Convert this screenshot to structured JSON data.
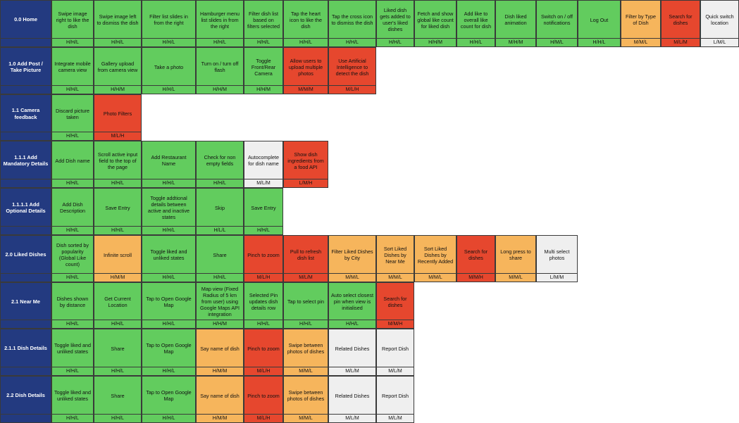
{
  "palette": {
    "green": "#62cc5e",
    "orange": "#f6b55c",
    "red": "#e6472e",
    "grey": "#efefef"
  },
  "rows": [
    {
      "label": "0.0 Home",
      "cells": [
        {
          "text": "Swipe image right to like the dish",
          "priority": "H/H/L",
          "color": "green"
        },
        {
          "text": "Swipe image left to dismiss the dish",
          "priority": "H/H/L",
          "color": "green"
        },
        {
          "text": "Filter list slides in from the right",
          "priority": "H/H/L",
          "color": "green"
        },
        {
          "text": "Hamburger menu list slides in from the right",
          "priority": "H/H/L",
          "color": "green"
        },
        {
          "text": "Filter dish list based on filters selected",
          "priority": "H/H/L",
          "color": "green"
        },
        {
          "text": "Tap the heart icon to like the dish",
          "priority": "H/H/L",
          "color": "green"
        },
        {
          "text": "Tap the cross icon to dismiss the dish",
          "priority": "H/H/L",
          "color": "green"
        },
        {
          "text": "Liked dish gets added to user's liked dishes",
          "priority": "H/H/L",
          "color": "green"
        },
        {
          "text": "Fetch and show global like count for liked dish",
          "priority": "H/H/M",
          "color": "green"
        },
        {
          "text": "Add like to overall like count for dish",
          "priority": "H/H/L",
          "color": "green"
        },
        {
          "text": "Dish liked animation",
          "priority": "M/H/M",
          "color": "green"
        },
        {
          "text": "Switch on / off notifications",
          "priority": "H/M/L",
          "color": "green"
        },
        {
          "text": "Log Out",
          "priority": "H/H/L",
          "color": "green"
        },
        {
          "text": "Filter by Type of Dish",
          "priority": "M/M/L",
          "color": "orange"
        },
        {
          "text": "Search for dishes",
          "priority": "M/L/M",
          "color": "red"
        },
        {
          "text": "Quick switch location",
          "priority": "L/M/L",
          "color": "grey"
        }
      ]
    },
    {
      "label": "1.0 Add Post /  Take Picture",
      "cells": [
        {
          "text": "Integrate mobile camera view",
          "priority": "H/H/L",
          "color": "green"
        },
        {
          "text": "Gallery upload from camera view",
          "priority": "H/H/M",
          "color": "green"
        },
        {
          "text": "Take a photo",
          "priority": "H/H/L",
          "color": "green"
        },
        {
          "text": "Turn on / turn off flash",
          "priority": "H/H/M",
          "color": "green"
        },
        {
          "text": "Toggle Front/Rear Camera",
          "priority": "H/H/M",
          "color": "green"
        },
        {
          "text": "Allow users to upload multiple photos",
          "priority": "M/M/M",
          "color": "red"
        },
        {
          "text": "Use Artificial Intelligence to detect the dish",
          "priority": "M/L/H",
          "color": "red"
        }
      ]
    },
    {
      "label": "1.1 Camera feedback",
      "cells": [
        {
          "text": "Discard picture taken",
          "priority": "H/H/L",
          "color": "green"
        },
        {
          "text": "Photo Filters",
          "priority": "M/L/H",
          "color": "red"
        }
      ]
    },
    {
      "label": "1.1.1 Add Mandatory Details",
      "cells": [
        {
          "text": "Add Dish name",
          "priority": "H/H/L",
          "color": "green"
        },
        {
          "text": "Scroll active input field to the top of the page",
          "priority": "H/H/L",
          "color": "green"
        },
        {
          "text": "Add Restaurant Name",
          "priority": "H/H/L",
          "color": "green"
        },
        {
          "text": "Check for non empty fields",
          "priority": "H/H/L",
          "color": "green"
        },
        {
          "text": "Autocomplete for dish name",
          "priority": "M/L/M",
          "color": "grey"
        },
        {
          "text": "Show dish ingredients from a food API",
          "priority": "L/M/H",
          "color": "red"
        }
      ]
    },
    {
      "label": "1.1.1.1 Add Optional Details",
      "cells": [
        {
          "text": "Add Dish Description",
          "priority": "H/H/L",
          "color": "green"
        },
        {
          "text": "Save Entry",
          "priority": "H/H/L",
          "color": "green"
        },
        {
          "text": "Toggle addtional details between active and inactive states",
          "priority": "H/H/L",
          "color": "green"
        },
        {
          "text": "Skip",
          "priority": "H/L/L",
          "color": "green"
        },
        {
          "text": "Save Entry",
          "priority": "H/H/L",
          "color": "green"
        }
      ]
    },
    {
      "label": "2.0 Liked Dishes",
      "cells": [
        {
          "text": "Dish sorted by popularity (Global Like count)",
          "priority": "H/H/L",
          "color": "green"
        },
        {
          "text": "Infinite scroll",
          "priority": "H/M/M",
          "color": "orange"
        },
        {
          "text": "Toggle liked and unliked states",
          "priority": "H/H/L",
          "color": "green"
        },
        {
          "text": "Share",
          "priority": "H/H/L",
          "color": "green"
        },
        {
          "text": "Pinch to zoom",
          "priority": "M/L/H",
          "color": "red"
        },
        {
          "text": "Pull to refresh dish list",
          "priority": "M/L/M",
          "color": "red"
        },
        {
          "text": "Filter Liked Dishes by City",
          "priority": "M/M/L",
          "color": "orange"
        },
        {
          "text": "Sort Liked Dishes by Near Me",
          "priority": "M/M/L",
          "color": "orange"
        },
        {
          "text": "Sort Liked Dishes by Recently Added",
          "priority": "M/M/L",
          "color": "orange"
        },
        {
          "text": "Search for dishes",
          "priority": "M/M/H",
          "color": "red"
        },
        {
          "text": "Long press to share",
          "priority": "M/M/L",
          "color": "orange"
        },
        {
          "text": "Multi select photos",
          "priority": "L/M/M",
          "color": "grey"
        }
      ]
    },
    {
      "label": "2.1 Near Me",
      "cells": [
        {
          "text": "Dishes shown by distance",
          "priority": "H/H/L",
          "color": "green"
        },
        {
          "text": "Get Current Location",
          "priority": "H/H/L",
          "color": "green"
        },
        {
          "text": "Tap to Open Google Map",
          "priority": "H/H/L",
          "color": "green"
        },
        {
          "text": "Map view (Fixed Radius of 5 km from user) using Google Maps API integration",
          "priority": "H/H/M",
          "color": "green"
        },
        {
          "text": "Selected Pin updates dish details row",
          "priority": "H/H/L",
          "color": "green"
        },
        {
          "text": "Tap to select pin",
          "priority": "H/H/L",
          "color": "green"
        },
        {
          "text": "Auto select closest pin when view is initialised",
          "priority": "H/H/L",
          "color": "green"
        },
        {
          "text": "Search for dishes",
          "priority": "M/M/H",
          "color": "red"
        }
      ]
    },
    {
      "label": "2.1.1  Dish Details",
      "cells": [
        {
          "text": "Toggle liked and unliked states",
          "priority": "H/H/L",
          "color": "green"
        },
        {
          "text": "Share",
          "priority": "H/H/L",
          "color": "green"
        },
        {
          "text": "Tap to Open Google Map",
          "priority": "H/H/L",
          "color": "green"
        },
        {
          "text": "Say name of dish",
          "priority": "H/M/M",
          "color": "orange"
        },
        {
          "text": "Pinch to zoom",
          "priority": "M/L/H",
          "color": "red"
        },
        {
          "text": "Swipe between photos of dishes",
          "priority": "M/M/L",
          "color": "orange"
        },
        {
          "text": "Related Dishes",
          "priority": "M/L/M",
          "color": "grey"
        },
        {
          "text": "Report Dish",
          "priority": "M/L/M",
          "color": "grey"
        }
      ]
    },
    {
      "label": "2.2 Dish Details",
      "cells": [
        {
          "text": "Toggle liked and unliked states",
          "priority": "H/H/L",
          "color": "green"
        },
        {
          "text": "Share",
          "priority": "H/H/L",
          "color": "green"
        },
        {
          "text": "Tap to Open Google Map",
          "priority": "H/H/L",
          "color": "green"
        },
        {
          "text": "Say name of dish",
          "priority": "H/M/M",
          "color": "orange"
        },
        {
          "text": "Pinch to zoom",
          "priority": "M/L/H",
          "color": "red"
        },
        {
          "text": "Swipe between photos of dishes",
          "priority": "M/M/L",
          "color": "orange"
        },
        {
          "text": "Related Dishes",
          "priority": "M/L/M",
          "color": "grey"
        },
        {
          "text": "Report Dish",
          "priority": "M/L/M",
          "color": "grey"
        }
      ]
    }
  ]
}
